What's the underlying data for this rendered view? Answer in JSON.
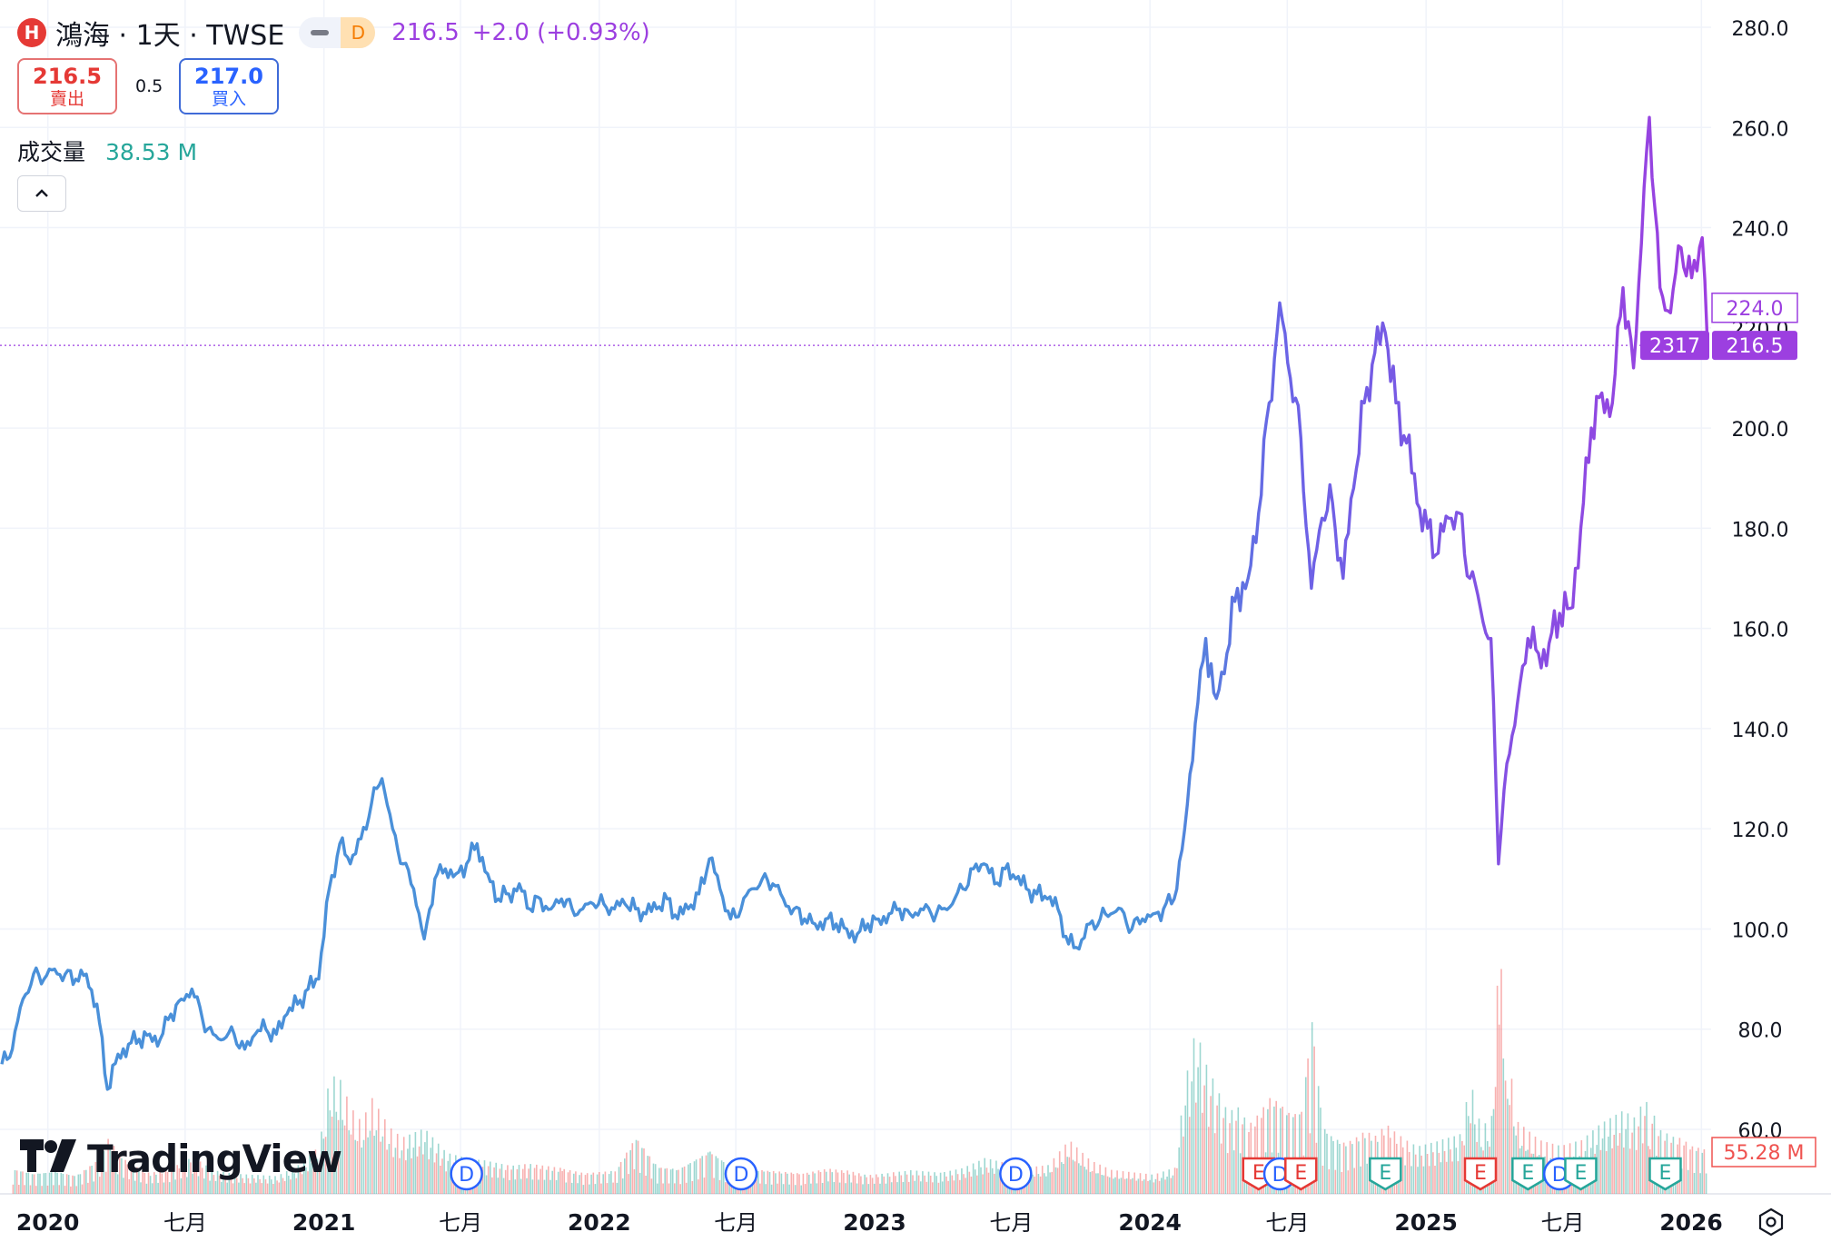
{
  "header": {
    "logo_letter": "H",
    "title": "鴻海 · 1天 · TWSE",
    "mode_badge": "D",
    "price": "216.5",
    "change": "+2.0 (+0.93%)"
  },
  "trade": {
    "sell_value": "216.5",
    "sell_label": "賣出",
    "spread": "0.5",
    "buy_value": "217.0",
    "buy_label": "買入"
  },
  "volume": {
    "label": "成交量",
    "value": "38.53 M",
    "axis_label": "55.28 M"
  },
  "branding": {
    "name": "TradingView"
  },
  "colors": {
    "line_early": "#4a90d9",
    "line_late": "#9c3fe0",
    "volume_up": "#26a69a",
    "volume_down": "#ef5350"
  },
  "icons": {
    "collapse": "chevron-up-icon",
    "settings": "hexagon-settings-icon"
  },
  "chart_data": {
    "type": "line",
    "series_name": "",
    "ylim": [
      55,
      285
    ],
    "y_ticks": [
      "280.0",
      "260.0",
      "240.0",
      "220.0",
      "200.0",
      "180.0",
      "160.0",
      "140.0",
      "120.0",
      "100.0",
      "80.0",
      "60.0"
    ],
    "x_ticks": [
      "2020",
      "七月",
      "2021",
      "七月",
      "2022",
      "七月",
      "2023",
      "七月",
      "2024",
      "七月",
      "2025",
      "七月",
      "2026"
    ],
    "price_labels": {
      "last": "216.5",
      "countdown": "2317",
      "high_label": "224.0"
    },
    "points": [
      [
        "2019-11-01",
        73
      ],
      [
        "2019-11-15",
        76
      ],
      [
        "2019-11-29",
        86
      ],
      [
        "2019-12-13",
        91
      ],
      [
        "2019-12-27",
        90
      ],
      [
        "2020-01-10",
        92
      ],
      [
        "2020-01-24",
        91
      ],
      [
        "2020-02-07",
        90
      ],
      [
        "2020-02-21",
        91
      ],
      [
        "2020-03-06",
        85
      ],
      [
        "2020-03-20",
        68
      ],
      [
        "2020-04-03",
        75
      ],
      [
        "2020-04-17",
        77
      ],
      [
        "2020-05-01",
        78
      ],
      [
        "2020-05-15",
        79
      ],
      [
        "2020-05-29",
        78
      ],
      [
        "2020-06-12",
        83
      ],
      [
        "2020-06-26",
        86
      ],
      [
        "2020-07-10",
        88
      ],
      [
        "2020-07-24",
        82
      ],
      [
        "2020-08-07",
        79
      ],
      [
        "2020-08-21",
        78
      ],
      [
        "2020-09-04",
        79
      ],
      [
        "2020-09-18",
        76
      ],
      [
        "2020-10-02",
        79
      ],
      [
        "2020-10-16",
        80
      ],
      [
        "2020-10-30",
        79
      ],
      [
        "2020-11-13",
        83
      ],
      [
        "2020-11-27",
        85
      ],
      [
        "2020-12-11",
        88
      ],
      [
        "2020-12-25",
        90
      ],
      [
        "2021-01-08",
        108
      ],
      [
        "2021-01-22",
        117
      ],
      [
        "2021-02-05",
        113
      ],
      [
        "2021-02-19",
        118
      ],
      [
        "2021-03-05",
        125
      ],
      [
        "2021-03-19",
        130
      ],
      [
        "2021-04-02",
        120
      ],
      [
        "2021-04-16",
        113
      ],
      [
        "2021-04-30",
        108
      ],
      [
        "2021-05-14",
        98
      ],
      [
        "2021-05-28",
        110
      ],
      [
        "2021-06-11",
        112
      ],
      [
        "2021-06-25",
        111
      ],
      [
        "2021-07-09",
        113
      ],
      [
        "2021-07-23",
        117
      ],
      [
        "2021-08-06",
        111
      ],
      [
        "2021-08-20",
        106
      ],
      [
        "2021-09-03",
        107
      ],
      [
        "2021-09-17",
        109
      ],
      [
        "2021-10-01",
        104
      ],
      [
        "2021-10-15",
        106
      ],
      [
        "2021-10-29",
        104
      ],
      [
        "2021-11-12",
        106
      ],
      [
        "2021-11-26",
        104
      ],
      [
        "2021-12-10",
        104
      ],
      [
        "2021-12-24",
        105
      ],
      [
        "2022-01-07",
        105
      ],
      [
        "2022-01-21",
        104
      ],
      [
        "2022-02-04",
        105
      ],
      [
        "2022-02-18",
        104
      ],
      [
        "2022-03-04",
        103
      ],
      [
        "2022-03-18",
        104
      ],
      [
        "2022-04-01",
        106
      ],
      [
        "2022-04-15",
        102
      ],
      [
        "2022-04-29",
        104
      ],
      [
        "2022-05-13",
        107
      ],
      [
        "2022-05-27",
        114
      ],
      [
        "2022-06-10",
        108
      ],
      [
        "2022-06-24",
        102
      ],
      [
        "2022-07-08",
        104
      ],
      [
        "2022-07-22",
        108
      ],
      [
        "2022-08-05",
        110
      ],
      [
        "2022-08-19",
        109
      ],
      [
        "2022-09-02",
        106
      ],
      [
        "2022-09-16",
        104
      ],
      [
        "2022-09-30",
        102
      ],
      [
        "2022-10-14",
        101
      ],
      [
        "2022-10-28",
        102
      ],
      [
        "2022-11-11",
        101
      ],
      [
        "2022-11-25",
        100
      ],
      [
        "2022-12-09",
        99
      ],
      [
        "2022-12-23",
        101
      ],
      [
        "2023-01-06",
        102
      ],
      [
        "2023-01-20",
        103
      ],
      [
        "2023-02-03",
        104
      ],
      [
        "2023-02-17",
        103
      ],
      [
        "2023-03-03",
        104
      ],
      [
        "2023-03-17",
        103
      ],
      [
        "2023-03-31",
        104
      ],
      [
        "2023-04-14",
        105
      ],
      [
        "2023-04-28",
        108
      ],
      [
        "2023-05-12",
        112
      ],
      [
        "2023-05-26",
        113
      ],
      [
        "2023-06-09",
        109
      ],
      [
        "2023-06-23",
        112
      ],
      [
        "2023-07-07",
        110
      ],
      [
        "2023-07-21",
        108
      ],
      [
        "2023-08-04",
        107
      ],
      [
        "2023-08-18",
        106
      ],
      [
        "2023-09-01",
        104
      ],
      [
        "2023-09-15",
        97
      ],
      [
        "2023-09-29",
        96
      ],
      [
        "2023-10-13",
        101
      ],
      [
        "2023-10-27",
        102
      ],
      [
        "2023-11-10",
        103
      ],
      [
        "2023-11-24",
        104
      ],
      [
        "2023-12-08",
        100
      ],
      [
        "2023-12-22",
        102
      ],
      [
        "2024-01-05",
        103
      ],
      [
        "2024-01-19",
        104
      ],
      [
        "2024-02-02",
        106
      ],
      [
        "2024-02-16",
        120
      ],
      [
        "2024-03-01",
        141
      ],
      [
        "2024-03-15",
        158
      ],
      [
        "2024-03-29",
        146
      ],
      [
        "2024-04-12",
        155
      ],
      [
        "2024-04-26",
        168
      ],
      [
        "2024-05-10",
        170
      ],
      [
        "2024-05-24",
        183
      ],
      [
        "2024-06-07",
        205
      ],
      [
        "2024-06-21",
        225
      ],
      [
        "2024-07-05",
        210
      ],
      [
        "2024-07-19",
        198
      ],
      [
        "2024-08-02",
        168
      ],
      [
        "2024-08-16",
        182
      ],
      [
        "2024-08-30",
        185
      ],
      [
        "2024-09-13",
        170
      ],
      [
        "2024-09-27",
        188
      ],
      [
        "2024-10-11",
        205
      ],
      [
        "2024-10-25",
        215
      ],
      [
        "2024-11-08",
        219
      ],
      [
        "2024-11-22",
        205
      ],
      [
        "2024-12-06",
        197
      ],
      [
        "2024-12-20",
        185
      ],
      [
        "2025-01-03",
        180
      ],
      [
        "2025-01-17",
        175
      ],
      [
        "2025-01-31",
        182
      ],
      [
        "2025-02-14",
        183
      ],
      [
        "2025-02-28",
        170
      ],
      [
        "2025-03-14",
        164
      ],
      [
        "2025-03-28",
        158
      ],
      [
        "2025-04-07",
        113
      ],
      [
        "2025-04-18",
        133
      ],
      [
        "2025-05-02",
        145
      ],
      [
        "2025-05-16",
        158
      ],
      [
        "2025-05-30",
        155
      ],
      [
        "2025-06-13",
        157
      ],
      [
        "2025-06-27",
        163
      ],
      [
        "2025-07-11",
        164
      ],
      [
        "2025-07-25",
        180
      ],
      [
        "2025-08-08",
        200
      ],
      [
        "2025-08-22",
        207
      ],
      [
        "2025-09-05",
        205
      ],
      [
        "2025-09-19",
        228
      ],
      [
        "2025-10-03",
        212
      ],
      [
        "2025-10-17",
        248
      ],
      [
        "2025-10-24",
        262
      ],
      [
        "2025-11-07",
        228
      ],
      [
        "2025-11-21",
        223
      ],
      [
        "2025-12-05",
        236
      ],
      [
        "2025-12-19",
        230
      ],
      [
        "2026-01-02",
        238
      ],
      [
        "2026-01-09",
        216.5
      ]
    ]
  },
  "volume_series": {
    "unit": "M",
    "ylim": [
      0,
      250
    ],
    "points": [
      [
        "2019-11-15",
        22
      ],
      [
        "2019-12-13",
        18
      ],
      [
        "2020-01-10",
        20
      ],
      [
        "2020-02-07",
        16
      ],
      [
        "2020-03-06",
        30
      ],
      [
        "2020-03-20",
        48
      ],
      [
        "2020-04-17",
        26
      ],
      [
        "2020-05-15",
        18
      ],
      [
        "2020-06-12",
        22
      ],
      [
        "2020-07-10",
        32
      ],
      [
        "2020-08-07",
        20
      ],
      [
        "2020-09-04",
        17
      ],
      [
        "2020-10-02",
        16
      ],
      [
        "2020-10-30",
        15
      ],
      [
        "2020-11-27",
        24
      ],
      [
        "2020-12-25",
        40
      ],
      [
        "2021-01-08",
        100
      ],
      [
        "2021-01-22",
        95
      ],
      [
        "2021-02-05",
        72
      ],
      [
        "2021-02-19",
        60
      ],
      [
        "2021-03-05",
        80
      ],
      [
        "2021-03-19",
        65
      ],
      [
        "2021-04-02",
        52
      ],
      [
        "2021-04-16",
        48
      ],
      [
        "2021-05-14",
        55
      ],
      [
        "2021-06-11",
        35
      ],
      [
        "2021-07-09",
        30
      ],
      [
        "2021-08-06",
        28
      ],
      [
        "2021-09-03",
        24
      ],
      [
        "2021-10-01",
        26
      ],
      [
        "2021-11-12",
        22
      ],
      [
        "2021-12-10",
        18
      ],
      [
        "2022-01-21",
        20
      ],
      [
        "2022-02-18",
        50
      ],
      [
        "2022-03-18",
        24
      ],
      [
        "2022-04-15",
        22
      ],
      [
        "2022-05-27",
        38
      ],
      [
        "2022-06-24",
        24
      ],
      [
        "2022-07-22",
        22
      ],
      [
        "2022-08-19",
        20
      ],
      [
        "2022-09-30",
        18
      ],
      [
        "2022-10-28",
        22
      ],
      [
        "2022-11-25",
        20
      ],
      [
        "2022-12-23",
        16
      ],
      [
        "2023-01-20",
        18
      ],
      [
        "2023-02-17",
        20
      ],
      [
        "2023-03-31",
        18
      ],
      [
        "2023-04-28",
        22
      ],
      [
        "2023-05-26",
        30
      ],
      [
        "2023-06-23",
        26
      ],
      [
        "2023-07-21",
        22
      ],
      [
        "2023-08-18",
        24
      ],
      [
        "2023-09-15",
        45
      ],
      [
        "2023-10-13",
        28
      ],
      [
        "2023-11-10",
        20
      ],
      [
        "2023-12-08",
        18
      ],
      [
        "2024-01-05",
        16
      ],
      [
        "2024-02-02",
        22
      ],
      [
        "2024-02-16",
        95
      ],
      [
        "2024-03-01",
        140
      ],
      [
        "2024-03-15",
        110
      ],
      [
        "2024-03-29",
        90
      ],
      [
        "2024-04-12",
        70
      ],
      [
        "2024-04-26",
        75
      ],
      [
        "2024-05-10",
        60
      ],
      [
        "2024-05-24",
        70
      ],
      [
        "2024-06-07",
        85
      ],
      [
        "2024-06-21",
        80
      ],
      [
        "2024-07-05",
        70
      ],
      [
        "2024-07-19",
        75
      ],
      [
        "2024-08-02",
        155
      ],
      [
        "2024-08-16",
        60
      ],
      [
        "2024-08-30",
        50
      ],
      [
        "2024-09-13",
        45
      ],
      [
        "2024-09-27",
        48
      ],
      [
        "2024-10-11",
        55
      ],
      [
        "2024-10-25",
        50
      ],
      [
        "2024-11-08",
        60
      ],
      [
        "2024-11-22",
        52
      ],
      [
        "2024-12-06",
        45
      ],
      [
        "2024-12-20",
        40
      ],
      [
        "2025-01-17",
        45
      ],
      [
        "2025-02-14",
        50
      ],
      [
        "2025-02-28",
        95
      ],
      [
        "2025-03-14",
        55
      ],
      [
        "2025-03-28",
        65
      ],
      [
        "2025-04-07",
        210
      ],
      [
        "2025-04-18",
        120
      ],
      [
        "2025-05-02",
        60
      ],
      [
        "2025-05-30",
        45
      ],
      [
        "2025-06-27",
        40
      ],
      [
        "2025-07-25",
        45
      ],
      [
        "2025-08-22",
        60
      ],
      [
        "2025-09-19",
        70
      ],
      [
        "2025-10-03",
        65
      ],
      [
        "2025-10-17",
        80
      ],
      [
        "2025-10-24",
        75
      ],
      [
        "2025-11-07",
        55
      ],
      [
        "2025-11-21",
        50
      ],
      [
        "2025-12-05",
        48
      ],
      [
        "2025-12-19",
        42
      ],
      [
        "2026-01-09",
        38
      ]
    ]
  },
  "events": [
    {
      "type": "D",
      "date": "2021-07-09"
    },
    {
      "type": "D",
      "date": "2022-07-08"
    },
    {
      "type": "D",
      "date": "2023-07-07"
    },
    {
      "type": "E",
      "date": "2024-05-24"
    },
    {
      "type": "D",
      "date": "2024-06-21"
    },
    {
      "type": "E",
      "date": "2024-07-19"
    },
    {
      "type": "E",
      "date": "2024-11-08"
    },
    {
      "type": "E",
      "date": "2025-03-14"
    },
    {
      "type": "E",
      "date": "2025-05-16"
    },
    {
      "type": "D",
      "date": "2025-06-27"
    },
    {
      "type": "E",
      "date": "2025-07-25"
    },
    {
      "type": "E",
      "date": "2025-11-14"
    }
  ],
  "event_colors": {
    "D": "#2962ff",
    "E_red": "#e53935",
    "E_green": "#26a69a"
  }
}
